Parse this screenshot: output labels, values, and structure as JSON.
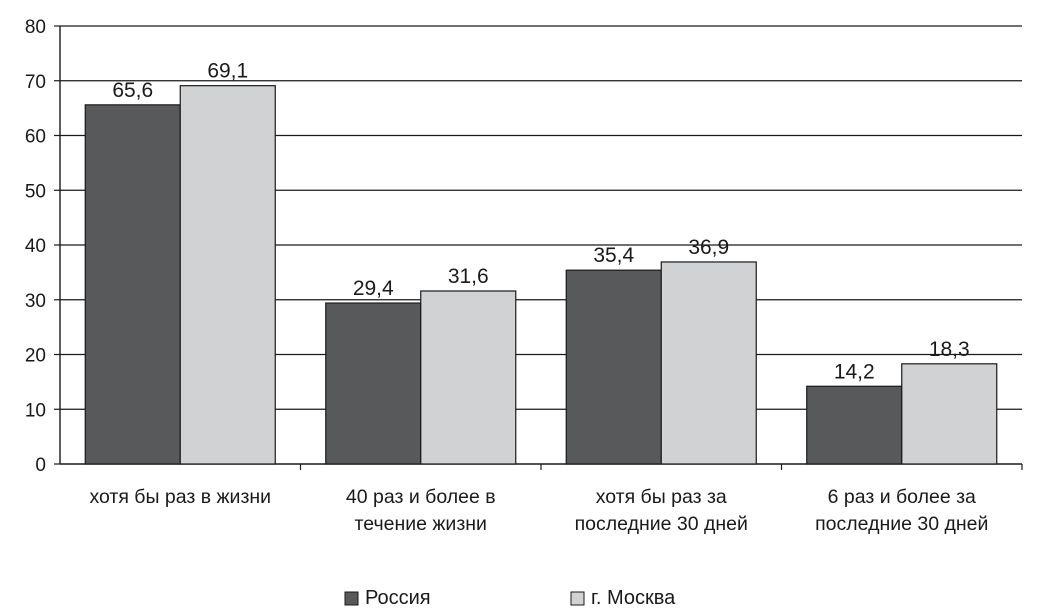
{
  "chart_data": {
    "type": "bar",
    "title": "",
    "xlabel": "",
    "ylabel": "",
    "ylim": [
      0,
      80
    ],
    "yticks": [
      0,
      10,
      20,
      30,
      40,
      50,
      60,
      70,
      80
    ],
    "grid": true,
    "legend_position": "bottom",
    "categories": [
      [
        "хотя бы раз в жизни"
      ],
      [
        "40 раз и более в",
        "течение жизни"
      ],
      [
        "хотя бы раз за",
        "последние 30 дней"
      ],
      [
        "6 раз и более за",
        "последние 30 дней"
      ]
    ],
    "series": [
      {
        "name": "Россия",
        "color": "#58595b",
        "values": [
          65.6,
          29.4,
          35.4,
          14.2
        ],
        "labels": [
          "65,6",
          "29,4",
          "35,4",
          "14,2"
        ]
      },
      {
        "name": "г. Москва",
        "color": "#d1d2d4",
        "values": [
          69.1,
          31.6,
          36.9,
          18.3
        ],
        "labels": [
          "69,1",
          "31,6",
          "36,9",
          "18,3"
        ]
      }
    ]
  }
}
